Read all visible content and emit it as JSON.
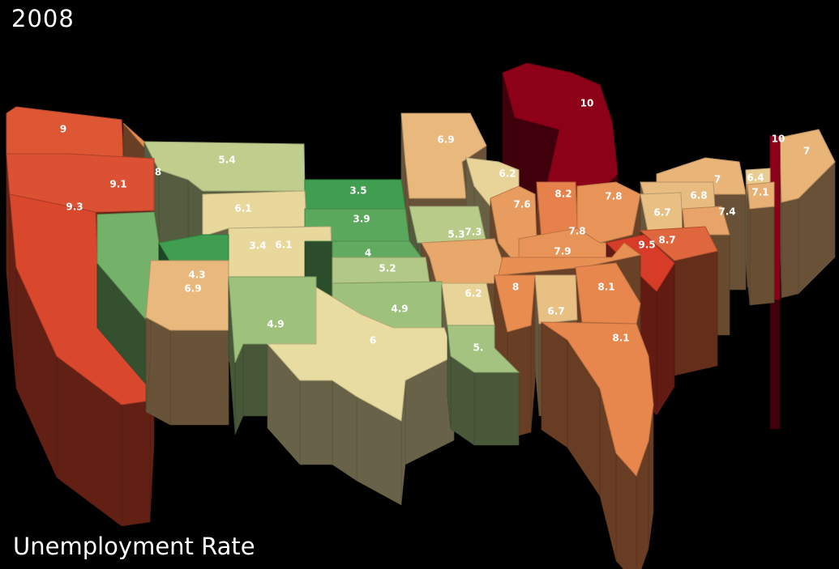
{
  "year": "2008",
  "caption": "Unemployment Rate",
  "chart_data": {
    "type": "3d-choropleth",
    "title": "",
    "color_scale": {
      "low": "#3f9e4f",
      "mid": "#e8dca0",
      "high": "#8c0018"
    },
    "states": [
      {
        "id": "WA",
        "value": "9"
      },
      {
        "id": "OR",
        "value": "9.1"
      },
      {
        "id": "CA",
        "value": "9.3"
      },
      {
        "id": "ID",
        "value": "8"
      },
      {
        "id": "MT",
        "value": "5.4"
      },
      {
        "id": "NV",
        "value": "4.3"
      },
      {
        "id": "UT",
        "value": "3.4"
      },
      {
        "id": "AZ",
        "value": "6.9"
      },
      {
        "id": "WY",
        "value": "6.1"
      },
      {
        "id": "CO",
        "value": "6.1"
      },
      {
        "id": "NM",
        "value": "4.9"
      },
      {
        "id": "ND",
        "value": "3.5"
      },
      {
        "id": "SD",
        "value": "3.9"
      },
      {
        "id": "NE",
        "value": "4"
      },
      {
        "id": "KS",
        "value": "5.2"
      },
      {
        "id": "OK",
        "value": "4.9"
      },
      {
        "id": "TX",
        "value": "6"
      },
      {
        "id": "MN",
        "value": "6.9"
      },
      {
        "id": "IA",
        "value": "5.3"
      },
      {
        "id": "MO",
        "value": "7.3"
      },
      {
        "id": "AR",
        "value": "6.2"
      },
      {
        "id": "LA",
        "value": "5."
      },
      {
        "id": "WI",
        "value": "6.2"
      },
      {
        "id": "IL",
        "value": "7.6"
      },
      {
        "id": "MI",
        "value": "10"
      },
      {
        "id": "IN",
        "value": "8.2"
      },
      {
        "id": "OH",
        "value": "7.8"
      },
      {
        "id": "KY",
        "value": "7.8"
      },
      {
        "id": "TN",
        "value": "7.9"
      },
      {
        "id": "MS",
        "value": "8"
      },
      {
        "id": "AL",
        "value": "6.7"
      },
      {
        "id": "GA",
        "value": "8.1"
      },
      {
        "id": "FL",
        "value": "8.1"
      },
      {
        "id": "SC",
        "value": "9.5"
      },
      {
        "id": "NC",
        "value": "8.7"
      },
      {
        "id": "WV",
        "value": "6.7"
      },
      {
        "id": "PA",
        "value": "6.8"
      },
      {
        "id": "NY",
        "value": "7"
      },
      {
        "id": "VA",
        "value": "7.4"
      },
      {
        "id": "VT",
        "value": "6.4"
      },
      {
        "id": "NH",
        "value": "7.1"
      },
      {
        "id": "RI",
        "value": "10"
      },
      {
        "id": "ME",
        "value": "7"
      }
    ]
  }
}
